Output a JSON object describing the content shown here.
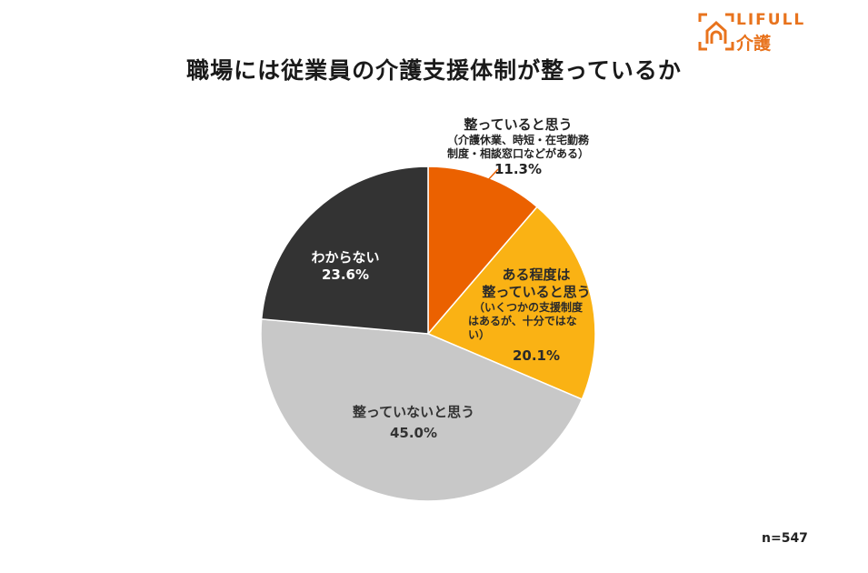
{
  "logo": {
    "brand": "LIFULL",
    "service": "介護",
    "color": "#e8731d"
  },
  "title": "職場には従業員の介護支援体制が整っているか",
  "sample": "n=547",
  "chart_data": {
    "type": "pie",
    "title": "職場には従業員の介護支援体制が整っているか",
    "n": 547,
    "start_angle_deg": 0,
    "direction": "clockwise",
    "slices": [
      {
        "label": "整っていると思う",
        "sublabel": "（介護休業、時短・在宅勤務制度・相談窓口などがある）",
        "value": 11.3,
        "color": "#eb6100"
      },
      {
        "label": "ある程度は整っていると思う",
        "sublabel": "（いくつかの支援制度はあるが、十分ではない）",
        "value": 20.1,
        "color": "#fab214"
      },
      {
        "label": "整っていないと思う",
        "sublabel": "",
        "value": 45.0,
        "color": "#c8c8c8"
      },
      {
        "label": "わからない",
        "sublabel": "",
        "value": 23.6,
        "color": "#333333"
      }
    ]
  },
  "labels": {
    "s1": {
      "main": "整っていると思う",
      "sub1": "（介護休業、時短・在宅勤務",
      "sub2": "制度・相談窓口などがある）",
      "pct": "11.3%"
    },
    "s2": {
      "main1": "ある程度は",
      "main2": "整っていると思う",
      "sub1": "（いくつかの支援制度",
      "sub2": "はあるが、十分ではな",
      "sub3": "い）",
      "pct": "20.1%"
    },
    "s3": {
      "main": "整っていないと思う",
      "pct": "45.0%"
    },
    "s4": {
      "main": "わからない",
      "pct": "23.6%"
    }
  }
}
